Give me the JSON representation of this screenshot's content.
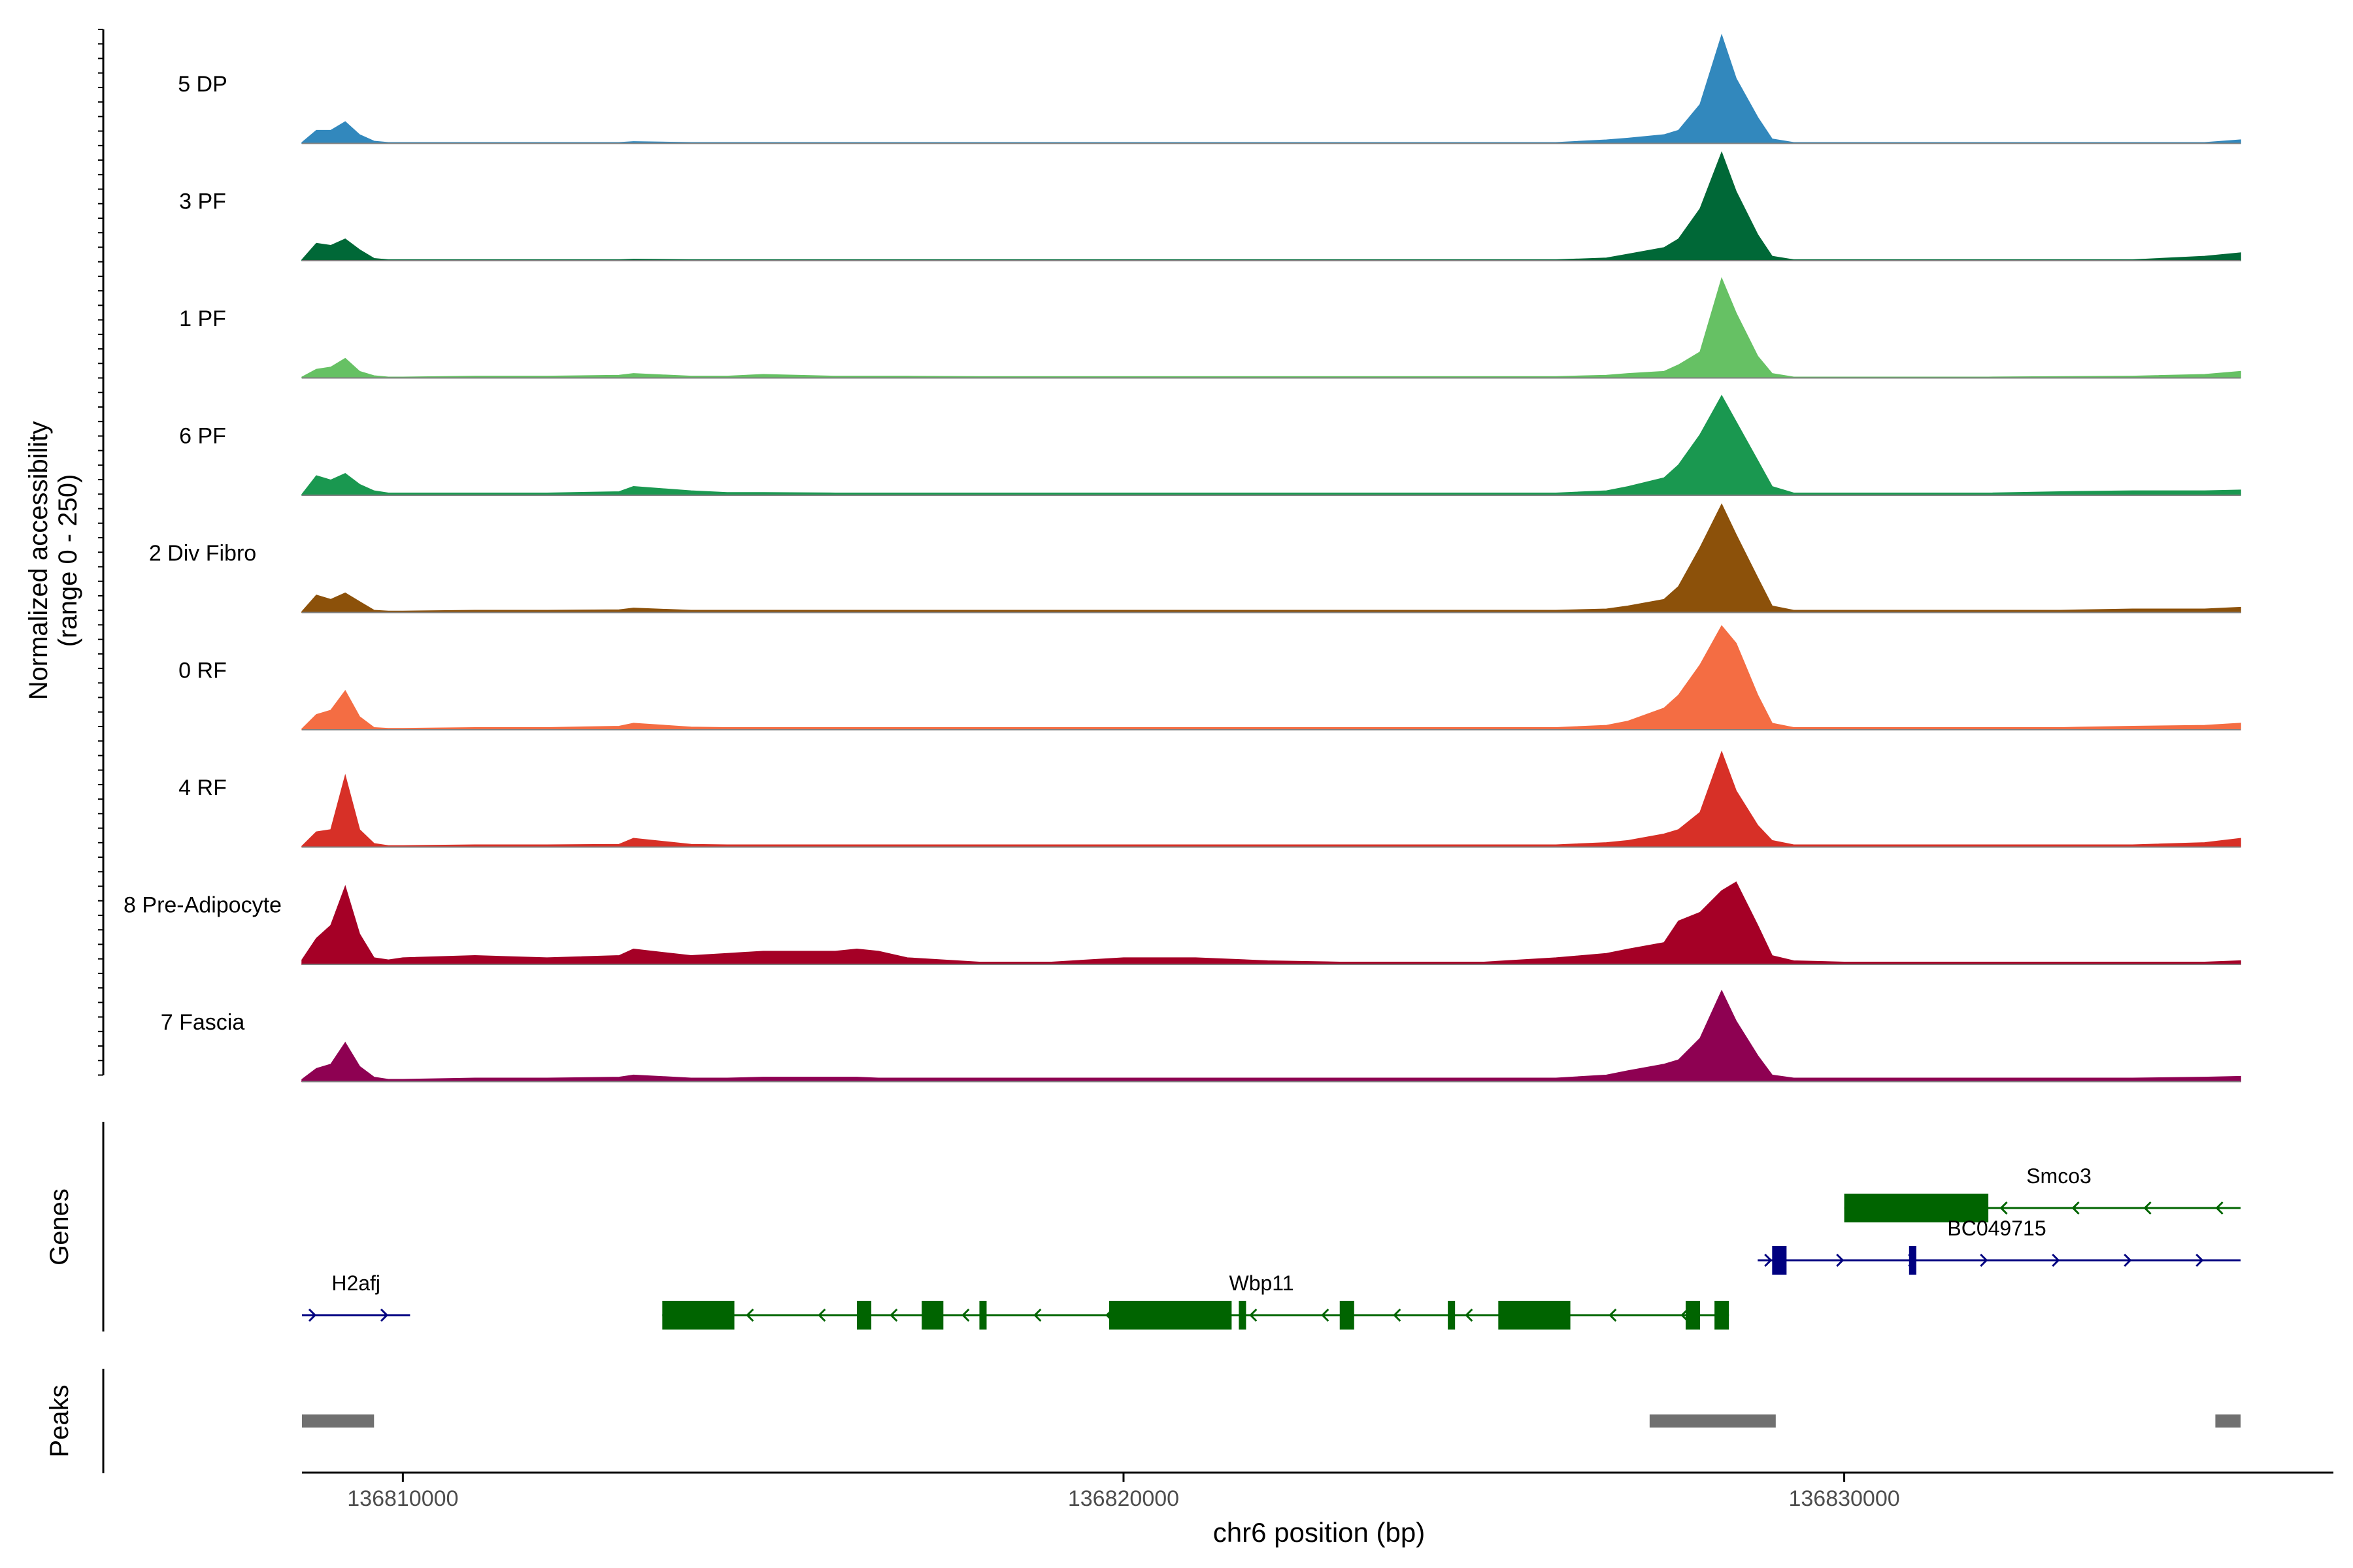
{
  "chart_data": {
    "type": "area",
    "title": "",
    "coverage": {
      "ylabel_line1": "Normalized accessibility",
      "ylabel_line2": "(range 0 - 250)",
      "ylim": [
        0,
        250
      ],
      "region_start": 136808600,
      "region_end": 136835500,
      "x": [
        136808600,
        136808800,
        136809000,
        136809200,
        136809400,
        136809600,
        136809800,
        136810000,
        136811000,
        136812000,
        136813000,
        136813200,
        136814000,
        136814500,
        136815000,
        136816000,
        136816300,
        136816600,
        136817000,
        136818000,
        136819000,
        136820000,
        136821000,
        136822000,
        136823000,
        136824000,
        136825000,
        136826000,
        136826700,
        136827000,
        136827500,
        136827700,
        136828000,
        136828300,
        136828500,
        136828800,
        136829000,
        136829300,
        136830000,
        136831000,
        136832000,
        136833000,
        136834000,
        136835000,
        136835500
      ],
      "series": [
        {
          "name": "5 DP",
          "color": "#3288bd",
          "values": [
            2,
            30,
            30,
            50,
            20,
            5,
            2,
            2,
            2,
            2,
            2,
            4,
            2,
            2,
            2,
            2,
            2,
            2,
            2,
            2,
            2,
            2,
            2,
            2,
            2,
            2,
            2,
            2,
            8,
            12,
            20,
            30,
            90,
            250,
            150,
            60,
            10,
            2,
            2,
            2,
            2,
            2,
            2,
            2,
            8
          ]
        },
        {
          "name": "3 PF",
          "color": "#006837",
          "values": [
            2,
            40,
            35,
            50,
            25,
            5,
            2,
            2,
            2,
            2,
            2,
            3,
            2,
            2,
            2,
            2,
            2,
            2,
            2,
            2,
            2,
            2,
            2,
            2,
            2,
            2,
            2,
            2,
            6,
            15,
            30,
            50,
            120,
            250,
            160,
            60,
            10,
            2,
            2,
            2,
            2,
            2,
            2,
            10,
            18
          ]
        },
        {
          "name": "1 PF",
          "color": "#66c164",
          "values": [
            2,
            20,
            25,
            45,
            15,
            5,
            2,
            2,
            4,
            4,
            6,
            10,
            4,
            4,
            8,
            4,
            4,
            4,
            4,
            3,
            3,
            3,
            3,
            3,
            3,
            3,
            3,
            3,
            6,
            10,
            15,
            30,
            60,
            230,
            150,
            50,
            10,
            2,
            2,
            2,
            2,
            3,
            4,
            8,
            15
          ]
        },
        {
          "name": "6 PF",
          "color": "#1a9850",
          "values": [
            2,
            45,
            35,
            50,
            25,
            10,
            5,
            5,
            5,
            5,
            8,
            20,
            10,
            6,
            6,
            5,
            5,
            5,
            5,
            5,
            5,
            5,
            5,
            5,
            5,
            5,
            5,
            5,
            10,
            20,
            40,
            70,
            140,
            230,
            170,
            80,
            20,
            5,
            5,
            5,
            5,
            8,
            10,
            10,
            12
          ]
        },
        {
          "name": "2 Div Fibro",
          "color": "#8c510a",
          "values": [
            2,
            40,
            30,
            45,
            25,
            5,
            3,
            3,
            5,
            5,
            6,
            10,
            5,
            5,
            5,
            5,
            5,
            5,
            5,
            5,
            5,
            5,
            5,
            5,
            5,
            5,
            5,
            5,
            8,
            15,
            30,
            60,
            150,
            250,
            180,
            80,
            15,
            5,
            5,
            5,
            5,
            5,
            8,
            8,
            12
          ]
        },
        {
          "name": "0 RF",
          "color": "#f46d43",
          "values": [
            2,
            35,
            45,
            90,
            30,
            5,
            3,
            3,
            5,
            5,
            8,
            15,
            6,
            5,
            5,
            5,
            5,
            5,
            5,
            5,
            5,
            5,
            5,
            5,
            5,
            5,
            5,
            5,
            10,
            20,
            50,
            80,
            150,
            240,
            200,
            80,
            15,
            5,
            5,
            5,
            5,
            5,
            8,
            10,
            15
          ]
        },
        {
          "name": "4 RF",
          "color": "#d73027",
          "values": [
            2,
            35,
            40,
            165,
            40,
            8,
            3,
            3,
            5,
            5,
            6,
            20,
            6,
            5,
            5,
            5,
            5,
            5,
            5,
            5,
            5,
            5,
            5,
            5,
            5,
            5,
            5,
            5,
            10,
            15,
            30,
            40,
            80,
            220,
            130,
            50,
            15,
            5,
            5,
            5,
            5,
            5,
            5,
            10,
            20
          ]
        },
        {
          "name": "8 Pre-Adipocyte",
          "color": "#a50026",
          "values": [
            10,
            60,
            90,
            180,
            70,
            15,
            10,
            15,
            20,
            15,
            20,
            35,
            20,
            25,
            30,
            30,
            35,
            30,
            15,
            5,
            5,
            15,
            15,
            8,
            5,
            5,
            5,
            15,
            25,
            35,
            50,
            100,
            120,
            170,
            190,
            90,
            20,
            8,
            5,
            5,
            5,
            5,
            5,
            5,
            8
          ]
        },
        {
          "name": "7 Fascia",
          "color": "#8e0152",
          "values": [
            5,
            30,
            40,
            90,
            35,
            10,
            5,
            5,
            8,
            8,
            10,
            15,
            8,
            8,
            10,
            10,
            10,
            8,
            8,
            8,
            8,
            8,
            8,
            8,
            8,
            8,
            8,
            8,
            15,
            25,
            40,
            50,
            100,
            210,
            140,
            60,
            15,
            8,
            8,
            8,
            8,
            8,
            8,
            10,
            12
          ]
        }
      ]
    },
    "genes": {
      "panel_label": "Genes",
      "items": [
        {
          "name": "H2afj",
          "strand": "+",
          "color": "#000080",
          "row": 3,
          "start": 136808600,
          "end": 136810100,
          "exons": []
        },
        {
          "name": "Wbp11",
          "strand": "-",
          "color": "#006400",
          "row": 3,
          "start": 136813600,
          "end": 136828400,
          "exons": [
            [
              136813600,
              136814600
            ],
            [
              136816300,
              136816500
            ],
            [
              136817200,
              136817500
            ],
            [
              136818000,
              136818100
            ],
            [
              136819800,
              136821500
            ],
            [
              136821600,
              136821700
            ],
            [
              136823000,
              136823200
            ],
            [
              136824500,
              136824600
            ],
            [
              136825200,
              136826200
            ],
            [
              136827800,
              136828000
            ],
            [
              136828200,
              136828400
            ]
          ]
        },
        {
          "name": "Smco3",
          "strand": "-",
          "color": "#006400",
          "row": 1,
          "start": 136830000,
          "end": 136835500,
          "exons": [
            [
              136830000,
              136832000
            ]
          ]
        },
        {
          "name": "BC049715",
          "strand": "+",
          "color": "#000080",
          "row": 2,
          "start": 136828800,
          "end": 136835500,
          "exons": [
            [
              136829000,
              136829200
            ],
            [
              136830900,
              136831000
            ]
          ]
        }
      ]
    },
    "peaks": {
      "panel_label": "Peaks",
      "color": "#707070",
      "regions": [
        [
          136808600,
          136809600
        ],
        [
          136827300,
          136829050
        ],
        [
          136835150,
          136835500
        ]
      ]
    },
    "xaxis": {
      "label": "chr6 position (bp)",
      "ticks": [
        136810000,
        136820000,
        136830000
      ],
      "tick_labels": [
        "136810000",
        "136820000",
        "136830000"
      ]
    }
  }
}
